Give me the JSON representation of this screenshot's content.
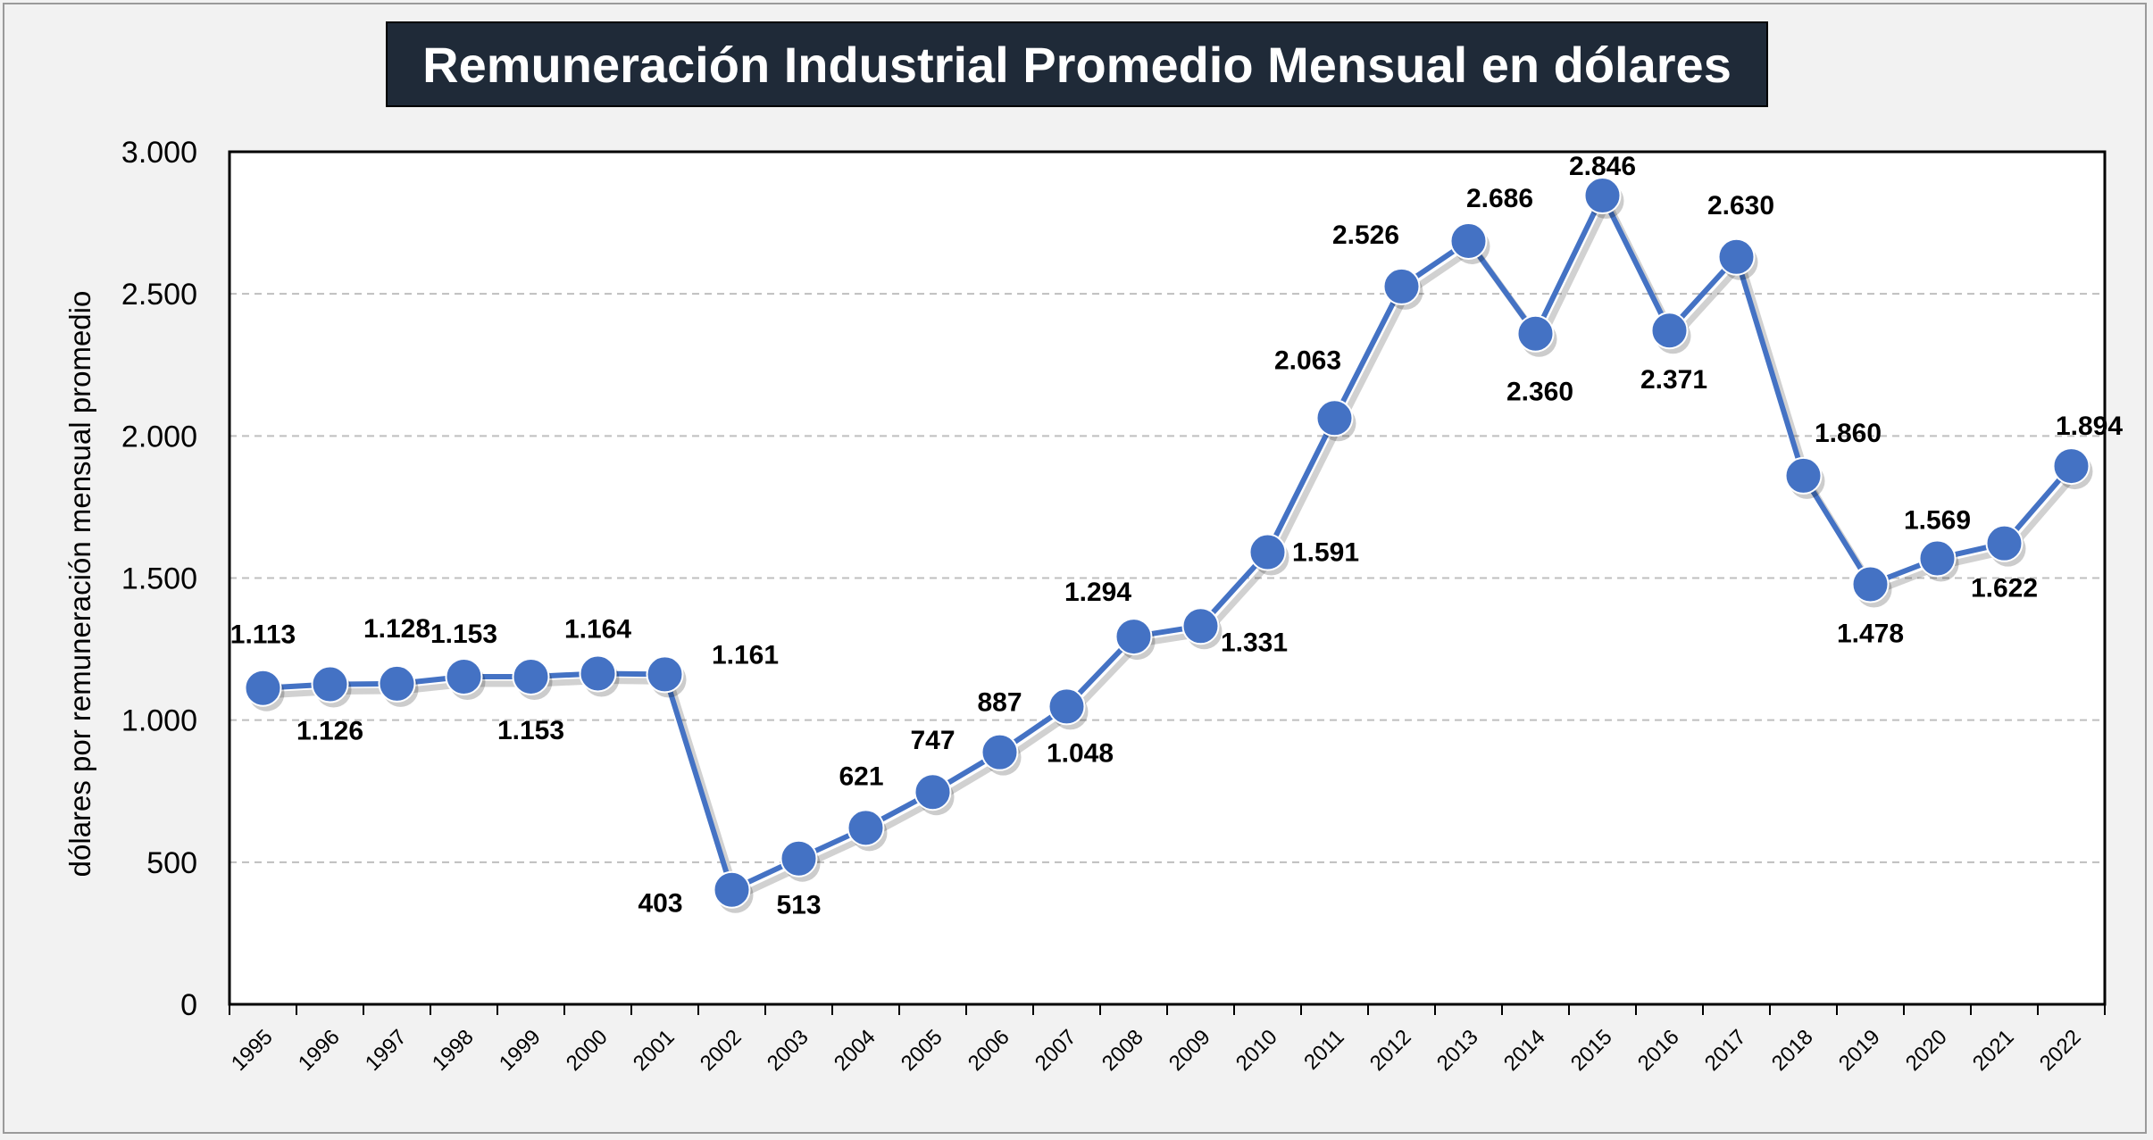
{
  "chart_data": {
    "type": "line",
    "title": "Remuneración Industrial Promedio Mensual en dólares",
    "xlabel": "",
    "ylabel": "dólares  por  remuneración  mensual  promedio",
    "ylim": [
      0,
      3000
    ],
    "yticks": [
      0,
      500,
      1000,
      1500,
      2000,
      2500,
      3000
    ],
    "ytick_labels": [
      "0",
      "500",
      "1.000",
      "1.500",
      "2.000",
      "2.500",
      "3.000"
    ],
    "grid": true,
    "color": "#4472c4",
    "categories": [
      "1995",
      "1996",
      "1997",
      "1998",
      "1999",
      "2000",
      "2001",
      "2002",
      "2003",
      "2004",
      "2005",
      "2006",
      "2007",
      "2008",
      "2009",
      "2010",
      "2011",
      "2012",
      "2013",
      "2014",
      "2015",
      "2016",
      "2017",
      "2018",
      "2019",
      "2020",
      "2021",
      "2022"
    ],
    "values": [
      1113,
      1126,
      1128,
      1153,
      1153,
      1164,
      1161,
      403,
      513,
      621,
      747,
      887,
      1048,
      1294,
      1331,
      1591,
      2063,
      2526,
      2686,
      2360,
      2846,
      2371,
      2630,
      1860,
      1478,
      1569,
      1622,
      1894
    ],
    "data_labels": [
      "1.113",
      "1.126",
      "1.128",
      "1.153",
      "1.153",
      "1.164",
      "1.161",
      "403",
      "513",
      "621",
      "747",
      "887",
      "1.048",
      "1.294",
      "1.331",
      "1.591",
      "2.063",
      "2.526",
      "2.686",
      "2.360",
      "2.846",
      "2.371",
      "2.630",
      "1.860",
      "1.478",
      "1.569",
      "1.622",
      "1.894"
    ]
  }
}
